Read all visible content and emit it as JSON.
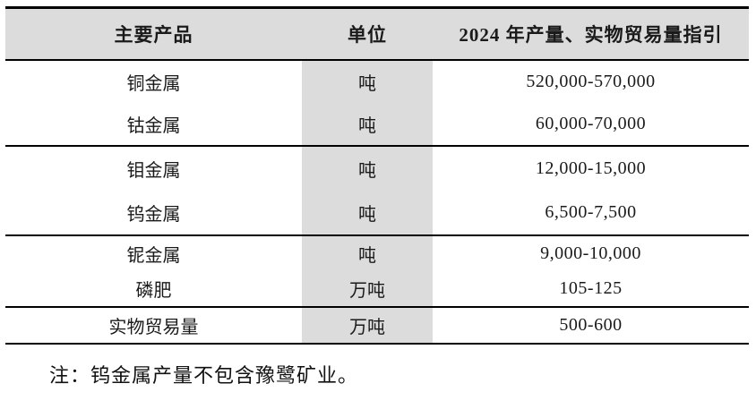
{
  "colors": {
    "header_bg": "#dcdcdc",
    "unit_column_bg": "#dcdcdc",
    "border": "#000000",
    "text": "#1a1a1a"
  },
  "table": {
    "headers": [
      "主要产品",
      "单位",
      "2024 年产量、实物贸易量指引"
    ],
    "rows": [
      {
        "product": "铜金属",
        "unit": "吨",
        "guidance": "520,000-570,000"
      },
      {
        "product": "钴金属",
        "unit": "吨",
        "guidance": "60,000-70,000"
      },
      {
        "product": "钼金属",
        "unit": "吨",
        "guidance": "12,000-15,000"
      },
      {
        "product": "钨金属",
        "unit": "吨",
        "guidance": "6,500-7,500"
      },
      {
        "product": "铌金属",
        "unit": "吨",
        "guidance": "9,000-10,000"
      },
      {
        "product": "磷肥",
        "unit": "万吨",
        "guidance": "105-125"
      },
      {
        "product": "实物贸易量",
        "unit": "万吨",
        "guidance": "500-600"
      }
    ]
  },
  "note": "注：钨金属产量不包含豫鹭矿业。"
}
